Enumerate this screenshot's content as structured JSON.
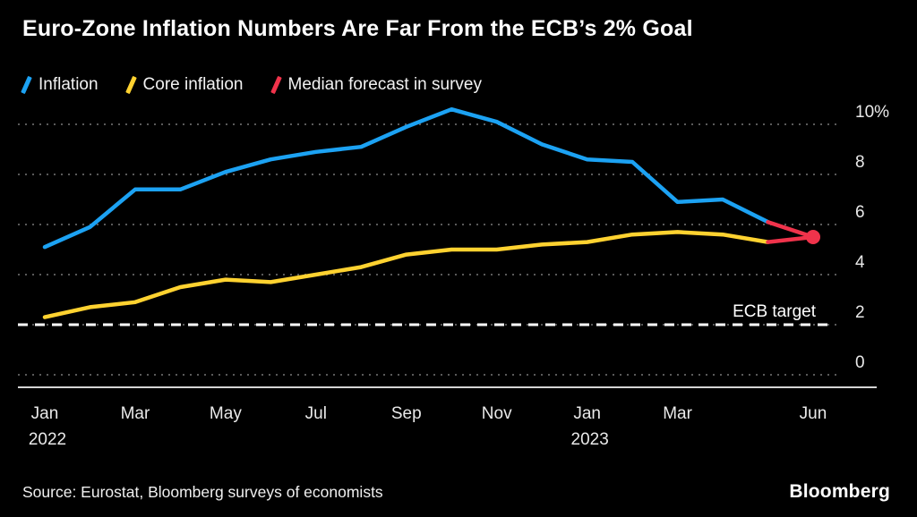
{
  "title": "Euro-Zone Inflation Numbers Are Far From the ECB’s 2% Goal",
  "legend": [
    {
      "label": "Inflation",
      "color": "#1ca2f3"
    },
    {
      "label": "Core inflation",
      "color": "#ffd230"
    },
    {
      "label": "Median forecast in survey",
      "color": "#f0334b"
    }
  ],
  "footer": {
    "source": "Source: Eurostat, Bloomberg surveys of economists",
    "brand": "Bloomberg"
  },
  "chart_data": {
    "type": "line",
    "title": "Euro-Zone Inflation Numbers Are Far From the ECB’s 2% Goal",
    "categories": [
      "Jan 2022",
      "Feb 2022",
      "Mar 2022",
      "Apr 2022",
      "May 2022",
      "Jun 2022",
      "Jul 2022",
      "Aug 2022",
      "Sep 2022",
      "Oct 2022",
      "Nov 2022",
      "Dec 2022",
      "Jan 2023",
      "Feb 2023",
      "Mar 2023",
      "Apr 2023",
      "May 2023",
      "Jun 2023"
    ],
    "series": [
      {
        "name": "Inflation",
        "color": "#1ca2f3",
        "values": [
          5.1,
          5.9,
          7.4,
          7.4,
          8.1,
          8.6,
          8.9,
          9.1,
          9.9,
          10.6,
          10.1,
          9.2,
          8.6,
          8.5,
          6.9,
          7.0,
          6.1,
          null
        ]
      },
      {
        "name": "Core inflation",
        "color": "#ffd230",
        "values": [
          2.3,
          2.7,
          2.9,
          3.5,
          3.8,
          3.7,
          4.0,
          4.3,
          4.8,
          5.0,
          5.0,
          5.2,
          5.3,
          5.6,
          5.7,
          5.6,
          5.3,
          null
        ]
      },
      {
        "name": "Median forecast in survey",
        "color": "#f0334b",
        "type": "forecast-point-with-connectors",
        "forecast": {
          "category": "Jun 2023",
          "value": 5.5
        }
      }
    ],
    "x_tick_labels": [
      {
        "label": "Jan",
        "index": 0
      },
      {
        "label": "Mar",
        "index": 2
      },
      {
        "label": "May",
        "index": 4
      },
      {
        "label": "Jul",
        "index": 6
      },
      {
        "label": "Sep",
        "index": 8
      },
      {
        "label": "Nov",
        "index": 10
      },
      {
        "label": "Jan",
        "index": 12
      },
      {
        "label": "Mar",
        "index": 14
      },
      {
        "label": "Jun",
        "index": 17
      }
    ],
    "year_labels": [
      {
        "label": "2022",
        "index": 0
      },
      {
        "label": "2023",
        "index": 12
      }
    ],
    "y_ticks": [
      {
        "value": 0,
        "label": "0"
      },
      {
        "value": 2,
        "label": "2"
      },
      {
        "value": 4,
        "label": "4"
      },
      {
        "value": 6,
        "label": "6"
      },
      {
        "value": 8,
        "label": "8"
      },
      {
        "value": 10,
        "label": "10%"
      }
    ],
    "ylim": [
      -0.5,
      11
    ],
    "annotations": [
      {
        "text": "ECB target",
        "value": 2,
        "style": "dashed-white-line"
      }
    ],
    "grid": "dotted-horizontal",
    "legend_position": "top-left",
    "colors": {
      "background": "#000000",
      "gridline": "#5a5a5a",
      "axis": "#d4d4d4"
    }
  }
}
